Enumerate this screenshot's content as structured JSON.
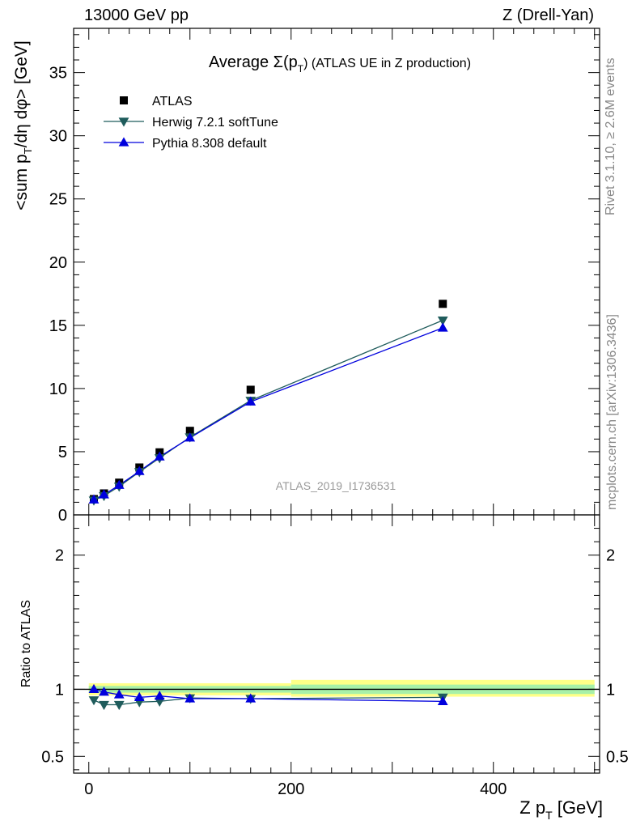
{
  "header": {
    "left": "13000 GeV pp",
    "right": "Z (Drell-Yan)"
  },
  "side": {
    "rivet": "Rivet 3.1.10, ≥ 2.6M events",
    "mcplots": "mcplots.cern.ch [arXiv:1306.3436]"
  },
  "colors": {
    "atlas": "#000000",
    "herwig": "#1f5c5c",
    "pythia": "#0000dd",
    "band_inner": "#a8f0a8",
    "band_outer": "#ffff88",
    "watermark": "#999999"
  },
  "chart_data": [
    {
      "type": "scatter",
      "title": "Average Σ(pT) (ATLAS UE in Z production)",
      "title_parts": {
        "pre": "Average ",
        "sigma": "Σ(p",
        "sub": "T",
        "post": ") (ATLAS UE in Z production)"
      },
      "ylabel_parts": {
        "pre": "<sum p",
        "sub": "T",
        "post": "/dη dφ> [GeV]"
      },
      "watermark": "ATLAS_2019_I1736531",
      "xlim": [
        -15,
        505
      ],
      "ylim": [
        0,
        38.5
      ],
      "yticks": [
        0,
        5,
        10,
        15,
        20,
        25,
        30,
        35
      ],
      "legend_position": "top-left",
      "x": [
        5,
        15,
        30,
        50,
        70,
        100,
        160,
        350
      ],
      "series": [
        {
          "name": "ATLAS",
          "marker": "square",
          "values": [
            1.25,
            1.7,
            2.55,
            3.75,
            4.95,
            6.65,
            9.9,
            16.7
          ]
        },
        {
          "name": "Herwig 7.2.1 softTune",
          "marker": "triangle-down",
          "values": [
            1.15,
            1.5,
            2.25,
            3.4,
            4.5,
            6.15,
            9.05,
            15.4
          ]
        },
        {
          "name": "Pythia 8.308 default",
          "marker": "triangle-up",
          "values": [
            1.2,
            1.6,
            2.35,
            3.45,
            4.6,
            6.1,
            8.95,
            14.8
          ]
        }
      ]
    },
    {
      "type": "line",
      "ylabel": "Ratio to ATLAS",
      "xlabel_parts": {
        "pre": "Z p",
        "sub": "T",
        "post": " [GeV]"
      },
      "xlim": [
        -15,
        505
      ],
      "ylim": [
        0.375,
        2.3
      ],
      "yticks": [
        0.5,
        1,
        2
      ],
      "yticklabels": [
        "0.5",
        "1",
        "2"
      ],
      "xticks": [
        0,
        200,
        400
      ],
      "x": [
        5,
        15,
        30,
        50,
        70,
        100,
        160,
        350
      ],
      "band": [
        {
          "x_from": 0,
          "x_to": 200,
          "inner": [
            0.975,
            1.025
          ],
          "outer": [
            0.955,
            1.045
          ]
        },
        {
          "x_from": 200,
          "x_to": 500,
          "inner": [
            0.965,
            1.035
          ],
          "outer": [
            0.945,
            1.07
          ]
        }
      ],
      "series": [
        {
          "name": "Herwig 7.2.1 softTune",
          "marker": "triangle-down",
          "values": [
            0.92,
            0.885,
            0.885,
            0.905,
            0.91,
            0.935,
            0.93,
            0.94
          ]
        },
        {
          "name": "Pythia 8.308 default",
          "marker": "triangle-up",
          "values": [
            1.0,
            0.98,
            0.96,
            0.94,
            0.95,
            0.93,
            0.93,
            0.91
          ]
        }
      ]
    }
  ]
}
